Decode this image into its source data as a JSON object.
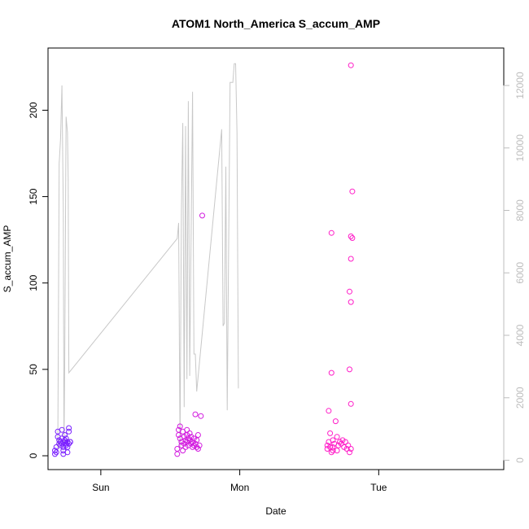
{
  "chart_data": {
    "type": "scatter",
    "title": "ATOM1 North_America S_accum_AMP",
    "xlabel": "Date",
    "ylabel": "S_accum_AMP",
    "x_ticks": [
      "Sun",
      "Mon",
      "Tue"
    ],
    "x_tick_positions_days": [
      0,
      1,
      2
    ],
    "xlim_days": [
      -0.38,
      2.9
    ],
    "ylim": [
      -8,
      236
    ],
    "y_ticks": [
      0,
      50,
      100,
      150,
      200
    ],
    "y2_ticks": [
      0,
      2000,
      4000,
      6000,
      8000,
      10000,
      12000
    ],
    "y2lim": [
      -300,
      13200
    ],
    "grid": false,
    "legend": "none",
    "colors": {
      "line": "#c8c8c8",
      "right_axis": "#bdbdbd",
      "early_points": "#7a1fff",
      "mid_points": "#d21adf",
      "late_points": "#ff1ec8"
    },
    "series": [
      {
        "kind": "points",
        "values": [
          [
            -0.33,
            1
          ],
          [
            -0.33,
            3
          ],
          [
            -0.32,
            2
          ],
          [
            -0.32,
            5
          ],
          [
            -0.31,
            11
          ],
          [
            -0.31,
            14
          ],
          [
            -0.3,
            7
          ],
          [
            -0.3,
            9
          ],
          [
            -0.29,
            8
          ],
          [
            -0.29,
            6
          ],
          [
            -0.28,
            15
          ],
          [
            -0.28,
            10
          ],
          [
            -0.28,
            7
          ],
          [
            -0.27,
            5
          ],
          [
            -0.27,
            3
          ],
          [
            -0.27,
            1
          ],
          [
            -0.26,
            8
          ],
          [
            -0.26,
            9
          ],
          [
            -0.26,
            12
          ],
          [
            -0.25,
            7
          ],
          [
            -0.25,
            6
          ],
          [
            -0.25,
            10
          ],
          [
            -0.24,
            8
          ],
          [
            -0.24,
            5
          ],
          [
            -0.23,
            14
          ],
          [
            -0.23,
            16
          ],
          [
            -0.23,
            7
          ],
          [
            -0.22,
            8
          ],
          [
            -0.22,
            8
          ],
          [
            -0.24,
            2
          ],
          [
            0.55,
            4
          ],
          [
            0.55,
            1
          ],
          [
            0.56,
            12
          ],
          [
            0.56,
            15
          ],
          [
            0.57,
            10
          ],
          [
            0.57,
            17
          ],
          [
            0.58,
            8
          ],
          [
            0.58,
            6
          ],
          [
            0.59,
            14
          ],
          [
            0.59,
            3
          ],
          [
            0.6,
            11
          ],
          [
            0.6,
            7
          ],
          [
            0.61,
            9
          ],
          [
            0.61,
            5
          ],
          [
            0.62,
            12
          ],
          [
            0.62,
            8
          ],
          [
            0.62,
            15
          ],
          [
            0.63,
            10
          ],
          [
            0.63,
            6
          ],
          [
            0.64,
            9
          ],
          [
            0.64,
            13
          ],
          [
            0.65,
            7
          ],
          [
            0.65,
            11
          ],
          [
            0.66,
            8
          ],
          [
            0.66,
            5
          ],
          [
            0.67,
            10
          ],
          [
            0.67,
            6
          ],
          [
            0.68,
            24
          ],
          [
            0.68,
            7
          ],
          [
            0.69,
            9
          ],
          [
            0.69,
            5
          ],
          [
            0.7,
            12
          ],
          [
            0.7,
            4
          ],
          [
            0.71,
            6
          ],
          [
            0.72,
            23
          ],
          [
            0.73,
            139
          ],
          [
            1.64,
            26
          ],
          [
            1.65,
            13
          ],
          [
            1.66,
            129
          ],
          [
            1.66,
            48
          ],
          [
            1.67,
            5
          ],
          [
            1.67,
            9
          ],
          [
            1.68,
            7
          ],
          [
            1.69,
            20
          ],
          [
            1.7,
            3
          ],
          [
            1.7,
            11
          ],
          [
            1.71,
            6
          ],
          [
            1.72,
            8
          ],
          [
            1.73,
            7
          ],
          [
            1.74,
            9
          ],
          [
            1.75,
            5
          ],
          [
            1.76,
            8
          ],
          [
            1.77,
            4
          ],
          [
            1.78,
            6
          ],
          [
            1.79,
            95
          ],
          [
            1.79,
            50
          ],
          [
            1.8,
            89
          ],
          [
            1.8,
            114
          ],
          [
            1.8,
            127
          ],
          [
            1.81,
            126
          ],
          [
            1.81,
            153
          ],
          [
            1.8,
            30
          ],
          [
            1.8,
            4
          ],
          [
            1.79,
            2
          ],
          [
            1.8,
            226
          ],
          [
            1.63,
            6
          ],
          [
            1.63,
            4
          ],
          [
            1.64,
            8
          ],
          [
            1.65,
            5
          ],
          [
            1.66,
            2
          ],
          [
            1.67,
            3
          ]
        ]
      },
      {
        "kind": "line",
        "axis": "right",
        "values": [
          [
            -0.31,
            300
          ],
          [
            -0.3,
            9500
          ],
          [
            -0.29,
            10300
          ],
          [
            -0.28,
            12000
          ],
          [
            -0.27,
            8000
          ],
          [
            -0.265,
            400
          ],
          [
            -0.26,
            3000
          ],
          [
            -0.25,
            11000
          ],
          [
            -0.24,
            10500
          ],
          [
            -0.235,
            9000
          ],
          [
            -0.23,
            2800
          ],
          [
            0.55,
            7100
          ],
          [
            0.56,
            7600
          ],
          [
            0.57,
            400
          ],
          [
            0.58,
            8000
          ],
          [
            0.59,
            10800
          ],
          [
            0.6,
            1700
          ],
          [
            0.61,
            10700
          ],
          [
            0.62,
            2600
          ],
          [
            0.63,
            11500
          ],
          [
            0.64,
            2700
          ],
          [
            0.66,
            11800
          ],
          [
            0.67,
            3400
          ],
          [
            0.68,
            3400
          ],
          [
            0.69,
            2200
          ],
          [
            0.87,
            10600
          ],
          [
            0.88,
            4300
          ],
          [
            0.89,
            4400
          ],
          [
            0.9,
            9400
          ],
          [
            0.91,
            1600
          ],
          [
            0.93,
            12100
          ],
          [
            0.95,
            12100
          ],
          [
            0.96,
            12700
          ],
          [
            0.97,
            12700
          ],
          [
            0.98,
            10500
          ],
          [
            0.99,
            2300
          ]
        ]
      }
    ]
  }
}
